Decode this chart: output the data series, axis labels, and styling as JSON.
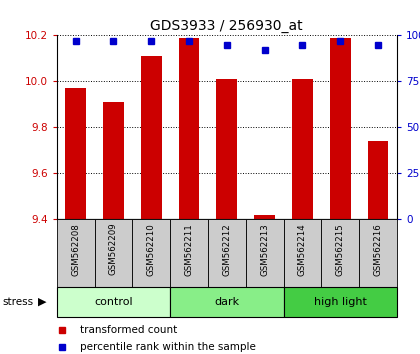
{
  "title": "GDS3933 / 256930_at",
  "samples": [
    "GSM562208",
    "GSM562209",
    "GSM562210",
    "GSM562211",
    "GSM562212",
    "GSM562213",
    "GSM562214",
    "GSM562215",
    "GSM562216"
  ],
  "bar_values": [
    9.97,
    9.91,
    10.11,
    10.19,
    10.01,
    9.42,
    10.01,
    10.19,
    9.74
  ],
  "percentile_values": [
    97,
    97,
    97,
    97,
    95,
    92,
    95,
    97,
    95
  ],
  "ymin": 9.4,
  "ymax": 10.2,
  "yticks": [
    9.4,
    9.6,
    9.8,
    10.0,
    10.2
  ],
  "right_yticks": [
    0,
    25,
    50,
    75,
    100
  ],
  "bar_color": "#cc0000",
  "percentile_color": "#0000cc",
  "bar_width": 0.55,
  "groups": [
    {
      "label": "control",
      "start": 0,
      "end": 3,
      "color": "#ccffcc"
    },
    {
      "label": "dark",
      "start": 3,
      "end": 6,
      "color": "#88ee88"
    },
    {
      "label": "high light",
      "start": 6,
      "end": 9,
      "color": "#44cc44"
    }
  ],
  "group_label_prefix": "stress",
  "legend_bar_label": "transformed count",
  "legend_pct_label": "percentile rank within the sample",
  "bar_label_color": "#cc0000",
  "pct_label_color": "#0000cc",
  "grid_color": "#000000",
  "tick_label_area_bg": "#cccccc"
}
